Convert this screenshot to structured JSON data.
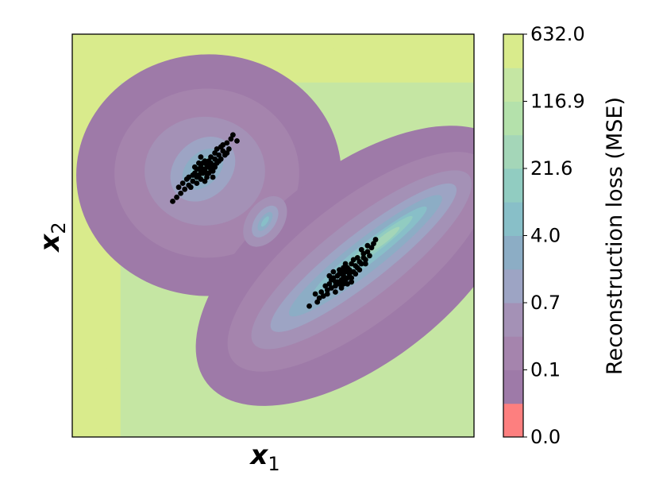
{
  "chart_data": {
    "type": "contour",
    "xlabel": {
      "symbol": "x",
      "subscript": "1"
    },
    "ylabel": {
      "symbol": "x",
      "subscript": "2"
    },
    "xticks": [],
    "yticks": [],
    "colorbar": {
      "label": "Reconstruction loss (MSE)",
      "tick_labels": [
        "0.0",
        "0.1",
        "0.7",
        "4.0",
        "21.6",
        "116.9",
        "632.0"
      ],
      "levels": [
        0.0,
        0.02,
        0.1,
        0.28,
        0.7,
        1.7,
        4.0,
        9.3,
        21.6,
        50.3,
        116.9,
        272.0,
        632.0
      ],
      "band_colors": [
        "#fd7f7f",
        "#9e7aa8",
        "#a584ad",
        "#a491b6",
        "#9da4c4",
        "#8cadc5",
        "#88bfc8",
        "#91ccc1",
        "#a4d6b8",
        "#b4e1ab",
        "#c5e6a3",
        "#d9eb8c"
      ]
    },
    "contour_field": {
      "description": "two elongated low-loss valleys centred on the data clusters, loss rising with distance",
      "valleys": [
        {
          "center": [
            -0.35,
            0.33
          ],
          "direction_deg": 45
        },
        {
          "center": [
            0.35,
            -0.2
          ],
          "direction_deg": 38
        }
      ],
      "secondary_minimum": [
        -0.04,
        0.07
      ]
    },
    "series": [
      {
        "type": "scatter",
        "color": "#000000",
        "points": [
          [
            -0.34,
            0.33
          ],
          [
            -0.37,
            0.3
          ],
          [
            -0.31,
            0.36
          ],
          [
            -0.29,
            0.38
          ],
          [
            -0.4,
            0.27
          ],
          [
            -0.36,
            0.34
          ],
          [
            -0.33,
            0.31
          ],
          [
            -0.3,
            0.35
          ],
          [
            -0.38,
            0.29
          ],
          [
            -0.35,
            0.36
          ],
          [
            -0.32,
            0.34
          ],
          [
            -0.27,
            0.4
          ],
          [
            -0.25,
            0.42
          ],
          [
            -0.42,
            0.25
          ],
          [
            -0.44,
            0.23
          ],
          [
            -0.39,
            0.31
          ],
          [
            -0.36,
            0.28
          ],
          [
            -0.31,
            0.39
          ],
          [
            -0.28,
            0.36
          ],
          [
            -0.34,
            0.37
          ],
          [
            -0.37,
            0.33
          ],
          [
            -0.33,
            0.29
          ],
          [
            -0.3,
            0.32
          ],
          [
            -0.26,
            0.44
          ],
          [
            -0.23,
            0.46
          ],
          [
            -0.21,
            0.48
          ],
          [
            -0.22,
            0.43
          ],
          [
            -0.24,
            0.4
          ],
          [
            -0.46,
            0.21
          ],
          [
            -0.48,
            0.19
          ],
          [
            -0.45,
            0.26
          ],
          [
            -0.41,
            0.24
          ],
          [
            -0.38,
            0.26
          ],
          [
            -0.35,
            0.31
          ],
          [
            -0.32,
            0.37
          ],
          [
            -0.29,
            0.41
          ],
          [
            -0.27,
            0.37
          ],
          [
            -0.39,
            0.34
          ],
          [
            -0.43,
            0.28
          ],
          [
            -0.36,
            0.39
          ],
          [
            -0.3,
            0.29
          ],
          [
            -0.26,
            0.38
          ],
          [
            -0.2,
            0.5
          ],
          [
            -0.18,
            0.47
          ],
          [
            -0.5,
            0.17
          ],
          [
            -0.47,
            0.24
          ],
          [
            -0.33,
            0.35
          ],
          [
            -0.35,
            0.33
          ],
          [
            -0.31,
            0.33
          ],
          [
            -0.37,
            0.36
          ],
          [
            -0.28,
            0.43
          ],
          [
            -0.4,
            0.3
          ],
          [
            -0.34,
            0.27
          ],
          [
            -0.25,
            0.45
          ],
          [
            -0.42,
            0.29
          ],
          [
            -0.32,
            0.31
          ],
          [
            -0.29,
            0.34
          ],
          [
            -0.36,
            0.31
          ],
          [
            -0.23,
            0.41
          ],
          [
            -0.38,
            0.33
          ],
          [
            0.35,
            -0.2
          ],
          [
            0.32,
            -0.23
          ],
          [
            0.38,
            -0.17
          ],
          [
            0.41,
            -0.15
          ],
          [
            0.29,
            -0.26
          ],
          [
            0.36,
            -0.18
          ],
          [
            0.33,
            -0.19
          ],
          [
            0.39,
            -0.21
          ],
          [
            0.31,
            -0.25
          ],
          [
            0.37,
            -0.16
          ],
          [
            0.34,
            -0.22
          ],
          [
            0.43,
            -0.13
          ],
          [
            0.45,
            -0.11
          ],
          [
            0.27,
            -0.27
          ],
          [
            0.25,
            -0.3
          ],
          [
            0.3,
            -0.21
          ],
          [
            0.35,
            -0.24
          ],
          [
            0.4,
            -0.18
          ],
          [
            0.42,
            -0.16
          ],
          [
            0.37,
            -0.21
          ],
          [
            0.33,
            -0.17
          ],
          [
            0.28,
            -0.24
          ],
          [
            0.44,
            -0.14
          ],
          [
            0.47,
            -0.08
          ],
          [
            0.49,
            -0.06
          ],
          [
            0.46,
            -0.12
          ],
          [
            0.5,
            -0.04
          ],
          [
            0.26,
            -0.25
          ],
          [
            0.23,
            -0.31
          ],
          [
            0.24,
            -0.28
          ],
          [
            0.39,
            -0.14
          ],
          [
            0.36,
            -0.22
          ],
          [
            0.32,
            -0.2
          ],
          [
            0.41,
            -0.19
          ],
          [
            0.29,
            -0.22
          ],
          [
            0.34,
            -0.26
          ],
          [
            0.38,
            -0.19
          ],
          [
            0.45,
            -0.09
          ],
          [
            0.48,
            -0.1
          ],
          [
            0.31,
            -0.28
          ],
          [
            0.22,
            -0.33
          ],
          [
            0.21,
            -0.29
          ],
          [
            0.51,
            -0.02
          ],
          [
            0.44,
            -0.07
          ],
          [
            0.37,
            -0.24
          ],
          [
            0.4,
            -0.12
          ],
          [
            0.35,
            -0.16
          ],
          [
            0.3,
            -0.18
          ],
          [
            0.42,
            -0.11
          ],
          [
            0.33,
            -0.24
          ],
          [
            0.27,
            -0.29
          ],
          [
            0.46,
            -0.14
          ],
          [
            0.18,
            -0.35
          ],
          [
            0.39,
            -0.23
          ],
          [
            0.43,
            -0.17
          ],
          [
            0.36,
            -0.14
          ],
          [
            0.31,
            -0.23
          ],
          [
            0.28,
            -0.2
          ],
          [
            0.47,
            -0.05
          ],
          [
            0.34,
            -0.18
          ]
        ]
      }
    ]
  }
}
